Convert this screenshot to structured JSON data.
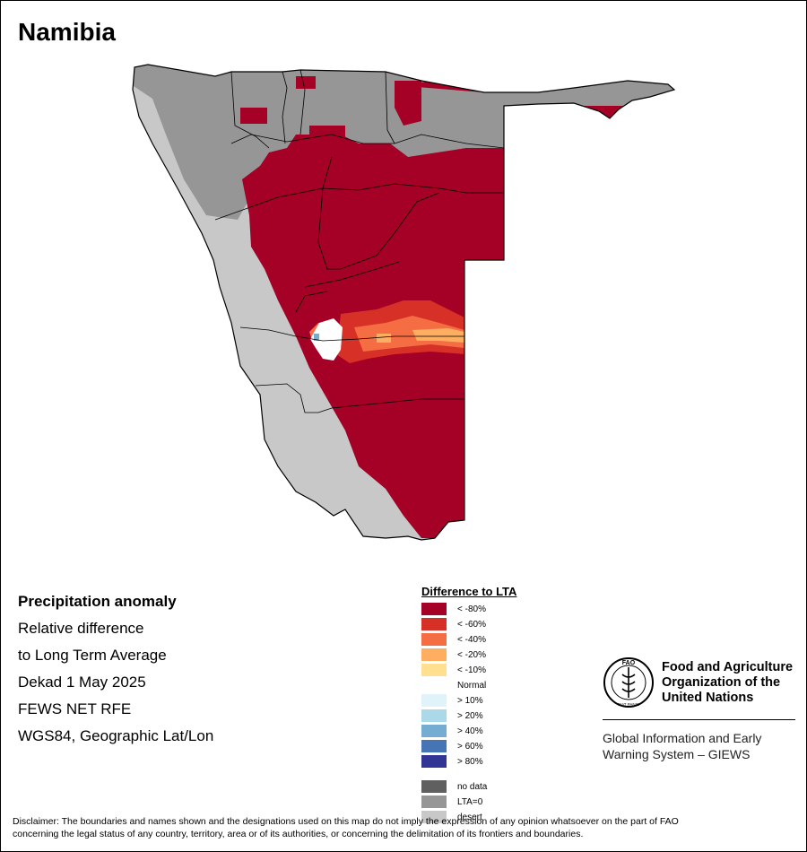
{
  "map_title": "Namibia",
  "info": {
    "line1": "Precipitation anomaly",
    "line2": "Relative difference",
    "line3": "to Long Term Average",
    "line4": "Dekad 1 May 2025",
    "line5": "FEWS NET RFE",
    "line6": "WGS84, Geographic Lat/Lon"
  },
  "legend": {
    "title": "Difference to LTA",
    "items": [
      {
        "label": "< -80%",
        "color": "#a50026"
      },
      {
        "label": "< -60%",
        "color": "#d73027"
      },
      {
        "label": "< -40%",
        "color": "#f46d43"
      },
      {
        "label": "< -20%",
        "color": "#fdae61"
      },
      {
        "label": "< -10%",
        "color": "#fee090"
      },
      {
        "label": "Normal",
        "color": "#ffffff"
      },
      {
        "label": "> 10%",
        "color": "#e0f3f8"
      },
      {
        "label": "> 20%",
        "color": "#abd9e9"
      },
      {
        "label": "> 40%",
        "color": "#74add1"
      },
      {
        "label": "> 60%",
        "color": "#4575b4"
      },
      {
        "label": "> 80%",
        "color": "#313695"
      },
      {
        "label": "no data",
        "color": "#606060"
      },
      {
        "label": "LTA=0",
        "color": "#969696"
      },
      {
        "label": "desert",
        "color": "#c8c8c8"
      }
    ]
  },
  "fao": {
    "org_line1": "Food and Agriculture",
    "org_line2": "Organization of the",
    "org_line3": "United Nations",
    "logo_letters": "FAO",
    "logo_motto": "FIAT PANIS",
    "giews_line1": "Global Information and Early",
    "giews_line2": "Warning System – GIEWS"
  },
  "disclaimer": {
    "line1": "Disclaimer: The boundaries and names shown and the designations used on this map do not imply the expression of any opinion whatsoever on the part of FAO",
    "line2": "concerning the legal status of any country, territory, area or of its authorities, or concerning the delimitation of its frontiers and boundaries."
  }
}
